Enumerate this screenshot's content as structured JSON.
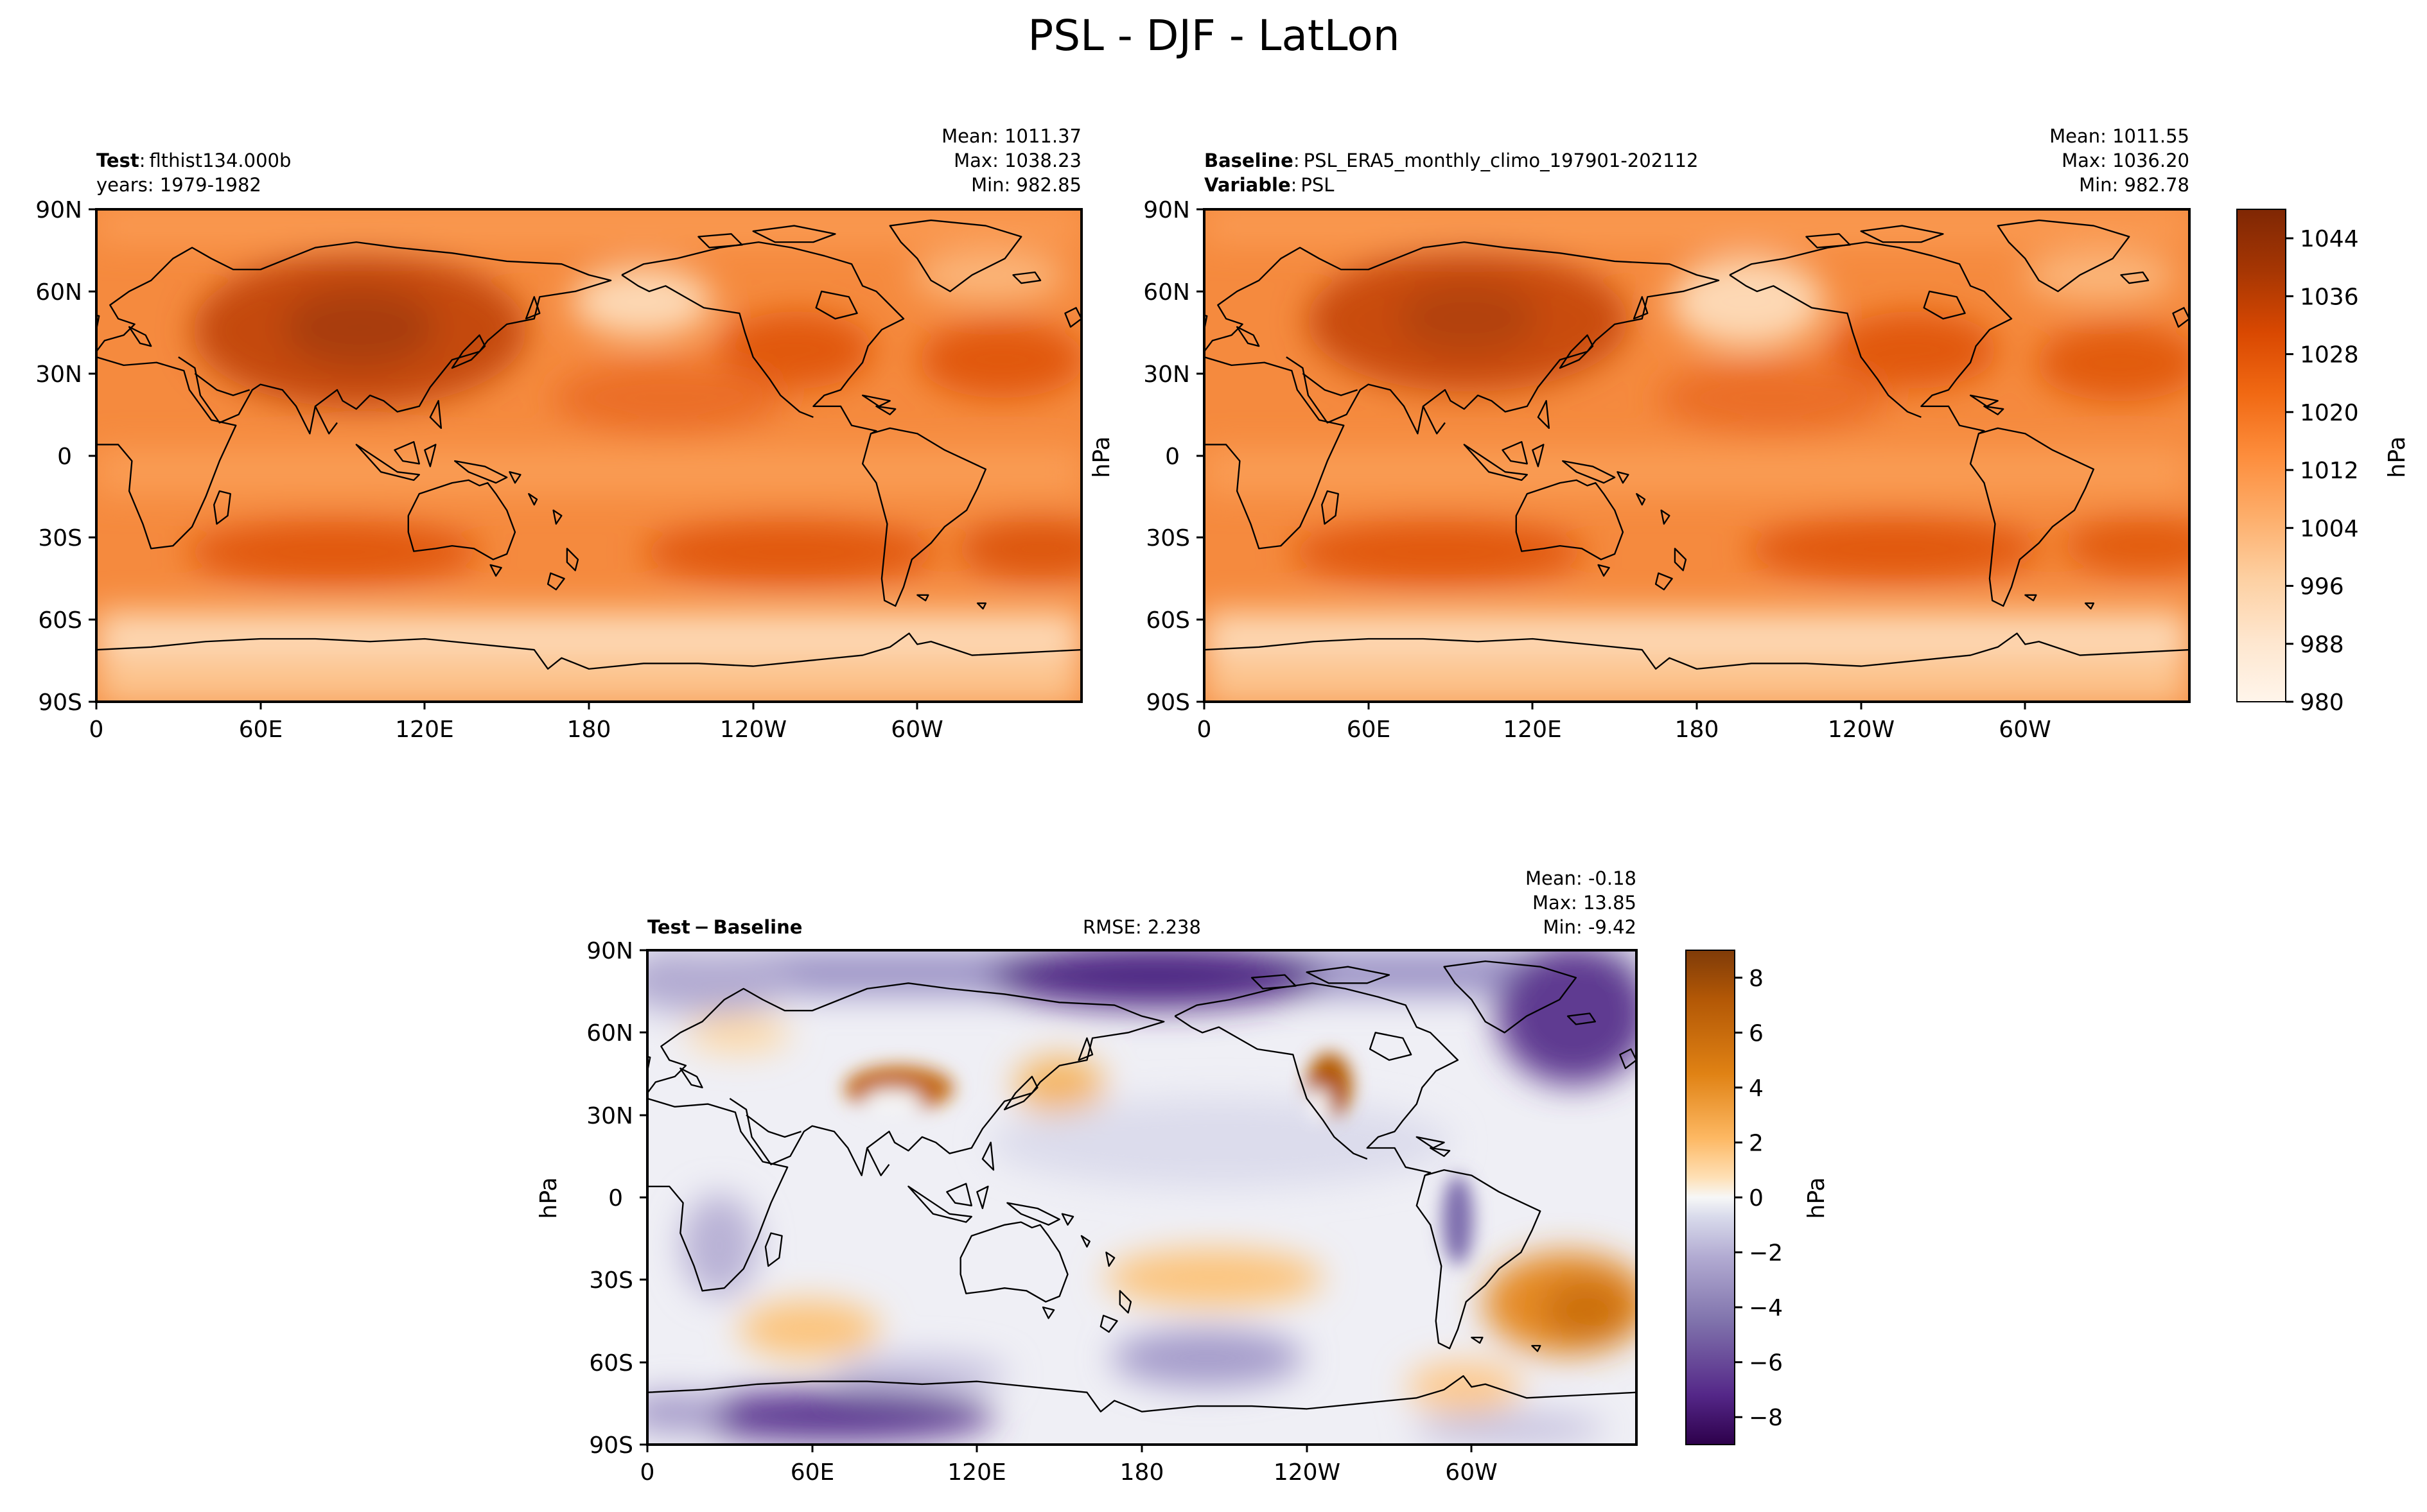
{
  "figure": {
    "title": "PSL - DJF - LatLon"
  },
  "colors": {
    "psl_ramp": [
      "#fff5eb",
      "#fee6ce",
      "#fdd0a2",
      "#fdae6b",
      "#fd8d3c",
      "#f16913",
      "#d94801",
      "#a63603",
      "#7f2704"
    ],
    "diff_neg": [
      "#f7f7f7",
      "#d8daeb",
      "#b2abd2",
      "#8073ac",
      "#542788",
      "#2d004b"
    ],
    "diff_pos": [
      "#f7f7f7",
      "#fee0b6",
      "#fdb863",
      "#e08214",
      "#b35806",
      "#7f3b08"
    ],
    "coast": "#000000"
  },
  "axes": {
    "lat_ticks": [
      "90N",
      "60N",
      "30N",
      "0",
      "30S",
      "60S",
      "90S"
    ],
    "lon_ticks": [
      "0",
      "60E",
      "120E",
      "180",
      "120W",
      "60W"
    ]
  },
  "panels": {
    "test": {
      "label_bold": "Test",
      "label_value": "flthist134.000b",
      "line2": "years: 1979-1982",
      "mean": "Mean: 1011.37",
      "max": "Max: 1038.23",
      "min": "Min: 982.85"
    },
    "baseline": {
      "label_bold": "Baseline",
      "label_value": "PSL_ERA5_monthly_climo_197901-202112",
      "line2_bold": "Variable",
      "line2_value": "PSL",
      "ylabel": "hPa",
      "mean": "Mean: 1011.55",
      "max": "Max: 1036.20",
      "min": "Min: 982.78"
    },
    "diff": {
      "label": "Test − Baseline",
      "rmse": "RMSE: 2.238",
      "ylabel": "hPa",
      "mean": "Mean: -0.18",
      "max": "Max: 13.85",
      "min": "Min: -9.42"
    }
  },
  "colorbar_top": {
    "label": "hPa",
    "ticks": [
      "980",
      "988",
      "996",
      "1004",
      "1012",
      "1020",
      "1028",
      "1036",
      "1044"
    ]
  },
  "colorbar_bottom": {
    "label": "hPa",
    "ticks": [
      "−8",
      "−6",
      "−4",
      "−2",
      "0",
      "2",
      "4",
      "6",
      "8"
    ]
  },
  "chart_data": [
    {
      "type": "heatmap",
      "title": "Test: flthist134.000b",
      "subtitle": "years: 1979-1982",
      "xlabel": "",
      "ylabel": "",
      "x_ticks": [
        "0",
        "60E",
        "120E",
        "180",
        "120W",
        "60W"
      ],
      "y_ticks": [
        "90N",
        "60N",
        "30N",
        "0",
        "30S",
        "60S",
        "90S"
      ],
      "stats": {
        "mean": 1011.37,
        "max": 1038.23,
        "min": 982.85
      },
      "units": "hPa",
      "value_range": [
        980,
        1048
      ]
    },
    {
      "type": "heatmap",
      "title": "Baseline: PSL_ERA5_monthly_climo_197901-202112",
      "subtitle": "Variable: PSL",
      "xlabel": "",
      "ylabel": "hPa",
      "x_ticks": [
        "0",
        "60E",
        "120E",
        "180",
        "120W",
        "60W"
      ],
      "y_ticks": [
        "90N",
        "60N",
        "30N",
        "0",
        "30S",
        "60S",
        "90S"
      ],
      "stats": {
        "mean": 1011.55,
        "max": 1036.2,
        "min": 982.78
      },
      "units": "hPa",
      "value_range": [
        980,
        1048
      ]
    },
    {
      "type": "heatmap",
      "title": "Test − Baseline",
      "xlabel": "",
      "ylabel": "hPa",
      "x_ticks": [
        "0",
        "60E",
        "120E",
        "180",
        "120W",
        "60W"
      ],
      "y_ticks": [
        "90N",
        "60N",
        "30N",
        "0",
        "30S",
        "60S",
        "90S"
      ],
      "stats": {
        "mean": -0.18,
        "max": 13.85,
        "min": -9.42,
        "rmse": 2.238
      },
      "units": "hPa",
      "value_range": [
        -9,
        9
      ]
    }
  ]
}
